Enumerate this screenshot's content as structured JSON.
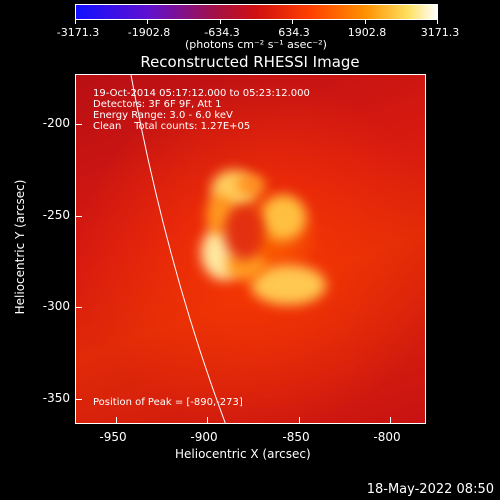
{
  "colorbar": {
    "ticks": [
      "-3171.3",
      "-1902.8",
      "-634.3",
      "634.3",
      "1902.8",
      "3171.3"
    ],
    "units": "(photons cm⁻² s⁻¹ asec⁻²)"
  },
  "title": "Reconstructed RHESSI Image",
  "info": {
    "line1": "19-Oct-2014 05:17:12.000 to 05:23:12.000",
    "line2": "Detectors: 3F 6F 9F, Att 1",
    "line3": "Energy Range: 3.0 - 6.0 keV",
    "line4": "Clean    Total counts: 1.27E+05"
  },
  "peak": "Position of Peak = [-890,-273]",
  "axes": {
    "xlabel": "Heliocentric X (arcsec)",
    "ylabel": "Heliocentric Y (arcsec)",
    "xticks": [
      "-950",
      "-900",
      "-850",
      "-800"
    ],
    "yticks": [
      "-200",
      "-250",
      "-300",
      "-350"
    ]
  },
  "footer_date": "18-May-2022 08:50"
}
